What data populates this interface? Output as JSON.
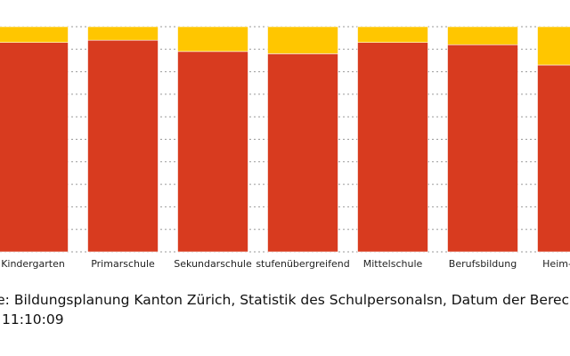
{
  "chart_data": {
    "type": "bar",
    "stacked": true,
    "orientation": "vertical",
    "categories": [
      "Kindergarten",
      "Primarschule",
      "Sekundarschule",
      "stufenübergreifend",
      "Mittelschule",
      "Berufsbildung",
      "Heim- und Sonderschule"
    ],
    "category_labels_shown": [
      "Kindergarten",
      "Primarschule",
      "Sekundarschule",
      "stufenübergreifend",
      "Mittelschule",
      "Berufsbildung",
      "Heim- und S"
    ],
    "series": [
      {
        "values": [
          93,
          94,
          89,
          88,
          93,
          92,
          83
        ]
      },
      {
        "values": [
          7,
          6,
          11,
          12,
          7,
          8,
          17
        ]
      }
    ],
    "series_colors": [
      "#d83b1f",
      "#ffc600"
    ],
    "ylim": [
      0,
      100
    ],
    "grid": true,
    "legend": "none"
  },
  "source": {
    "line1": "elle: Bildungsplanung Kanton Zürich, Statistik des Schulpersonalsn, Datum der Bereche",
    "line2": "11:10:09"
  }
}
